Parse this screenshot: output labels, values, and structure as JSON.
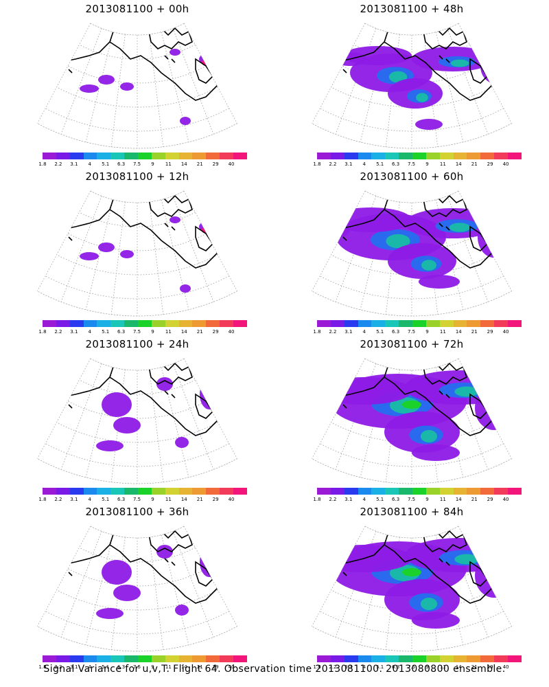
{
  "panels": [
    {
      "title": "2013081100 + 00h",
      "intensity": 0
    },
    {
      "title": "2013081100 + 48h",
      "intensity": 2
    },
    {
      "title": "2013081100 + 12h",
      "intensity": 0
    },
    {
      "title": "2013081100 + 60h",
      "intensity": 3
    },
    {
      "title": "2013081100 + 24h",
      "intensity": 1
    },
    {
      "title": "2013081100 + 72h",
      "intensity": 4
    },
    {
      "title": "2013081100 + 36h",
      "intensity": 1
    },
    {
      "title": "2013081100 + 84h",
      "intensity": 4
    }
  ],
  "colorbar": {
    "colors": [
      "#9a1ad6",
      "#7a1ae6",
      "#2a3aee",
      "#1a8aee",
      "#1ab0e6",
      "#1ac6b8",
      "#1ab86a",
      "#1ad22a",
      "#9ad22a",
      "#d2d232",
      "#e6b432",
      "#ee9a32",
      "#f26a3a",
      "#f23a5a",
      "#f2167a"
    ],
    "labels": [
      "1.8",
      "2.2",
      "3.1",
      "4",
      "5.1",
      "6.3",
      "7.5",
      "9",
      "11",
      "14",
      "21",
      "29",
      "40"
    ]
  },
  "footer": "Signal Variance for u,v,T. Flight 64. Observation time 2013081100. 2013080800 ensemble."
}
